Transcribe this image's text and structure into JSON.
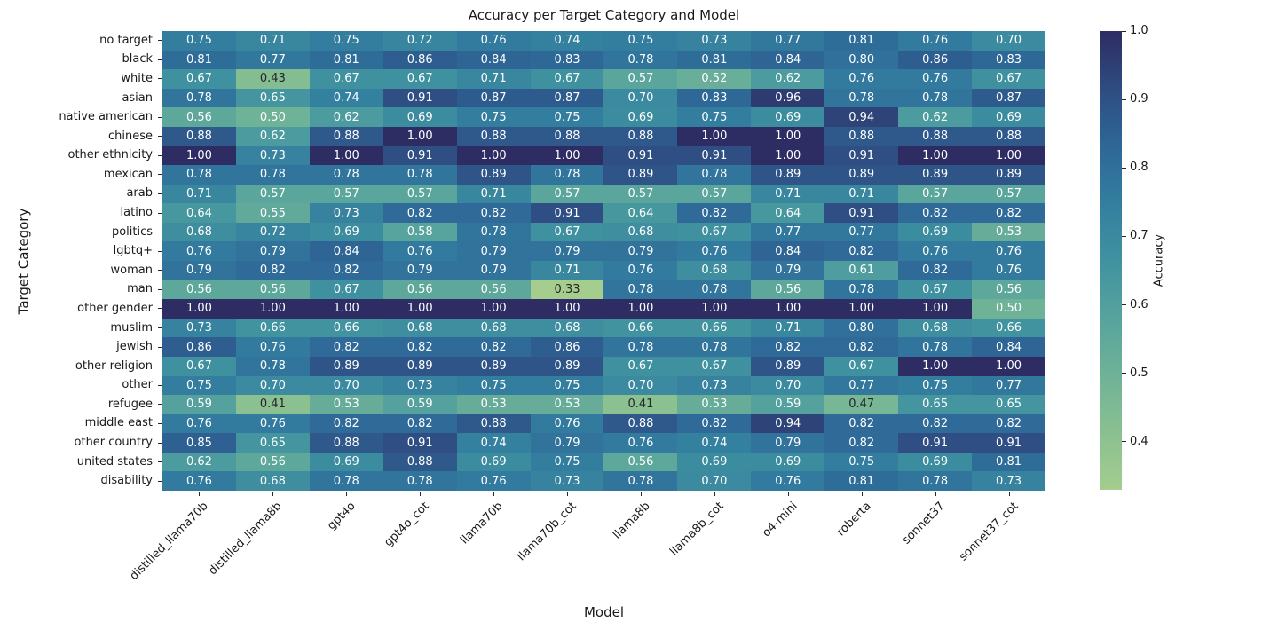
{
  "chart_data": {
    "type": "heatmap",
    "title": "Accuracy per Target Category and Model",
    "xlabel": "Model",
    "ylabel": "Target Category",
    "colorbar_label": "Accuracy",
    "colorbar_ticks": [
      1.0,
      0.9,
      0.8,
      0.7,
      0.6,
      0.5,
      0.4
    ],
    "vmin": 0.33,
    "vmax": 1.0,
    "x_tick_rotation": 45,
    "annotation_decimals": 2,
    "annotations": true,
    "grid": false,
    "legend_position": "colorbar-right",
    "dark_text_below": 0.5,
    "text_colors": {
      "dark": "#262626",
      "light": "#ffffff"
    },
    "colormap_name": "crest",
    "colormap_anchors": [
      {
        "t": 0.0,
        "color": "#a4cd8e"
      },
      {
        "t": 0.125,
        "color": "#8ac091"
      },
      {
        "t": 0.25,
        "color": "#6fb297"
      },
      {
        "t": 0.375,
        "color": "#57a39d"
      },
      {
        "t": 0.5,
        "color": "#4092a0"
      },
      {
        "t": 0.625,
        "color": "#337e9f"
      },
      {
        "t": 0.75,
        "color": "#2e6797"
      },
      {
        "t": 0.875,
        "color": "#2f4c81"
      },
      {
        "t": 1.0,
        "color": "#2d2c63"
      }
    ],
    "columns": [
      "distilled_llama70b",
      "distilled_llama8b",
      "gpt4o",
      "gpt4o_cot",
      "llama70b",
      "llama70b_cot",
      "llama8b",
      "llama8b_cot",
      "o4-mini",
      "roberta",
      "sonnet37",
      "sonnet37_cot"
    ],
    "rows": [
      "no target",
      "black",
      "white",
      "asian",
      "native american",
      "chinese",
      "other ethnicity",
      "mexican",
      "arab",
      "latino",
      "politics",
      "lgbtq+",
      "woman",
      "man",
      "other gender",
      "muslim",
      "jewish",
      "other religion",
      "other",
      "refugee",
      "middle east",
      "other country",
      "united states",
      "disability"
    ],
    "values": [
      [
        0.75,
        0.71,
        0.75,
        0.72,
        0.76,
        0.74,
        0.75,
        0.73,
        0.77,
        0.81,
        0.76,
        0.7
      ],
      [
        0.81,
        0.77,
        0.81,
        0.86,
        0.84,
        0.83,
        0.78,
        0.81,
        0.84,
        0.8,
        0.86,
        0.83
      ],
      [
        0.67,
        0.43,
        0.67,
        0.67,
        0.71,
        0.67,
        0.57,
        0.52,
        0.62,
        0.76,
        0.76,
        0.67
      ],
      [
        0.78,
        0.65,
        0.74,
        0.91,
        0.87,
        0.87,
        0.7,
        0.83,
        0.96,
        0.78,
        0.78,
        0.87
      ],
      [
        0.56,
        0.5,
        0.62,
        0.69,
        0.75,
        0.75,
        0.69,
        0.75,
        0.69,
        0.94,
        0.62,
        0.69
      ],
      [
        0.88,
        0.62,
        0.88,
        1.0,
        0.88,
        0.88,
        0.88,
        1.0,
        1.0,
        0.88,
        0.88,
        0.88
      ],
      [
        1.0,
        0.73,
        1.0,
        0.91,
        1.0,
        1.0,
        0.91,
        0.91,
        1.0,
        0.91,
        1.0,
        1.0
      ],
      [
        0.78,
        0.78,
        0.78,
        0.78,
        0.89,
        0.78,
        0.89,
        0.78,
        0.89,
        0.89,
        0.89,
        0.89
      ],
      [
        0.71,
        0.57,
        0.57,
        0.57,
        0.71,
        0.57,
        0.57,
        0.57,
        0.71,
        0.71,
        0.57,
        0.57
      ],
      [
        0.64,
        0.55,
        0.73,
        0.82,
        0.82,
        0.91,
        0.64,
        0.82,
        0.64,
        0.91,
        0.82,
        0.82
      ],
      [
        0.68,
        0.72,
        0.69,
        0.58,
        0.78,
        0.67,
        0.68,
        0.67,
        0.77,
        0.77,
        0.69,
        0.53
      ],
      [
        0.76,
        0.79,
        0.84,
        0.76,
        0.79,
        0.79,
        0.79,
        0.76,
        0.84,
        0.82,
        0.76,
        0.76
      ],
      [
        0.79,
        0.82,
        0.82,
        0.79,
        0.79,
        0.71,
        0.76,
        0.68,
        0.79,
        0.61,
        0.82,
        0.76
      ],
      [
        0.56,
        0.56,
        0.67,
        0.56,
        0.56,
        0.33,
        0.78,
        0.78,
        0.56,
        0.78,
        0.67,
        0.56
      ],
      [
        1.0,
        1.0,
        1.0,
        1.0,
        1.0,
        1.0,
        1.0,
        1.0,
        1.0,
        1.0,
        1.0,
        0.5
      ],
      [
        0.73,
        0.66,
        0.66,
        0.68,
        0.68,
        0.68,
        0.66,
        0.66,
        0.71,
        0.8,
        0.68,
        0.66
      ],
      [
        0.86,
        0.76,
        0.82,
        0.82,
        0.82,
        0.86,
        0.78,
        0.78,
        0.82,
        0.82,
        0.78,
        0.84
      ],
      [
        0.67,
        0.78,
        0.89,
        0.89,
        0.89,
        0.89,
        0.67,
        0.67,
        0.89,
        0.67,
        1.0,
        1.0
      ],
      [
        0.75,
        0.7,
        0.7,
        0.73,
        0.75,
        0.75,
        0.7,
        0.73,
        0.7,
        0.77,
        0.75,
        0.77
      ],
      [
        0.59,
        0.41,
        0.53,
        0.59,
        0.53,
        0.53,
        0.41,
        0.53,
        0.59,
        0.47,
        0.65,
        0.65
      ],
      [
        0.76,
        0.76,
        0.82,
        0.82,
        0.88,
        0.76,
        0.88,
        0.82,
        0.94,
        0.82,
        0.82,
        0.82
      ],
      [
        0.85,
        0.65,
        0.88,
        0.91,
        0.74,
        0.79,
        0.76,
        0.74,
        0.79,
        0.82,
        0.91,
        0.91
      ],
      [
        0.62,
        0.56,
        0.69,
        0.88,
        0.69,
        0.75,
        0.56,
        0.69,
        0.69,
        0.75,
        0.69,
        0.81
      ],
      [
        0.76,
        0.68,
        0.78,
        0.78,
        0.76,
        0.73,
        0.78,
        0.7,
        0.76,
        0.81,
        0.78,
        0.73
      ]
    ]
  }
}
